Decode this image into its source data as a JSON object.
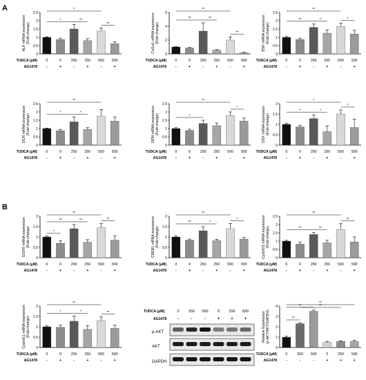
{
  "figure": {
    "panel_letters": [
      "A",
      "B"
    ],
    "tudca_label": "TUDCA (μM)",
    "ag_label": "AG1478",
    "x_tudca": [
      "0",
      "0",
      "250",
      "250",
      "500",
      "500"
    ],
    "x_ag": [
      "-",
      "+",
      "-",
      "+",
      "-",
      "+"
    ],
    "bar_colors": [
      "#101010",
      "#8c8c8c",
      "#5a5a5a",
      "#a6a6a6",
      "#d9d9d9",
      "#9a9a9a"
    ],
    "sig": {
      "star": "*",
      "double": "**"
    }
  },
  "chart_data": [
    {
      "id": "alp",
      "type": "bar",
      "ylabel": "ALP mRNA expression",
      "ylabel2": "(Fold change)",
      "ylim": [
        0,
        2.5
      ],
      "yticks": [
        0,
        0.5,
        1.0,
        1.5,
        2.0,
        2.5
      ],
      "values": [
        1.0,
        0.87,
        1.5,
        0.8,
        1.38,
        0.62
      ],
      "errors": [
        0.03,
        0.08,
        0.28,
        0.12,
        0.18,
        0.12
      ],
      "brackets": [
        {
          "a": 0,
          "b": 4,
          "t": "*"
        },
        {
          "a": 0,
          "b": 2,
          "t": "*"
        },
        {
          "a": 2,
          "b": 3,
          "t": "**"
        },
        {
          "a": 4,
          "b": 5,
          "t": "**"
        }
      ]
    },
    {
      "id": "col1a1",
      "type": "bar",
      "ylabel": "Col1a1 mRNA expression",
      "ylabel2": "(Fold change)",
      "ylim": [
        0,
        6
      ],
      "yticks": [
        0,
        2,
        4,
        6
      ],
      "values": [
        1.0,
        0.85,
        3.3,
        0.55,
        2.0,
        0.15
      ],
      "errors": [
        0.05,
        0.08,
        1.2,
        0.08,
        0.45,
        0.1
      ],
      "brackets": [
        {
          "a": 0,
          "b": 4,
          "t": "**"
        },
        {
          "a": 0,
          "b": 2,
          "t": "**"
        },
        {
          "a": 2,
          "b": 3,
          "t": "**"
        },
        {
          "a": 4,
          "b": 5,
          "t": "**"
        }
      ]
    },
    {
      "id": "bsp",
      "type": "bar",
      "ylabel": "BSP mRNA expression",
      "ylabel2": "(Fold change)",
      "ylim": [
        0,
        2.5
      ],
      "yticks": [
        0,
        0.5,
        1.0,
        1.5,
        2.0,
        2.5
      ],
      "values": [
        1.0,
        0.87,
        1.6,
        1.25,
        1.65,
        1.2
      ],
      "errors": [
        0.05,
        0.08,
        0.2,
        0.2,
        0.2,
        0.22
      ],
      "brackets": [
        {
          "a": 0,
          "b": 4,
          "t": "**"
        },
        {
          "a": 0,
          "b": 2,
          "t": "**"
        },
        {
          "a": 2,
          "b": 3,
          "t": "*"
        },
        {
          "a": 4,
          "b": 5,
          "t": "*"
        }
      ]
    },
    {
      "id": "ocn",
      "type": "bar",
      "ylabel": "OCN mRNA expression",
      "ylabel2": "(Fold change)",
      "ylim": [
        0,
        2.5
      ],
      "yticks": [
        0,
        0.5,
        1.0,
        1.5,
        2.0,
        2.5
      ],
      "values": [
        1.0,
        0.87,
        1.4,
        0.95,
        1.75,
        1.45
      ],
      "errors": [
        0.03,
        0.08,
        0.3,
        0.1,
        0.4,
        0.25
      ],
      "brackets": [
        {
          "a": 0,
          "b": 4,
          "t": "**"
        },
        {
          "a": 0,
          "b": 2,
          "t": "*"
        },
        {
          "a": 2,
          "b": 3,
          "t": "*"
        }
      ]
    },
    {
      "id": "opn",
      "type": "bar",
      "ylabel": "OPN mRNA expression",
      "ylabel2": "(Fold change)",
      "ylim": [
        0,
        2.5
      ],
      "yticks": [
        0,
        0.5,
        1.0,
        1.5,
        2.0,
        2.5
      ],
      "values": [
        1.0,
        0.88,
        1.3,
        1.18,
        1.78,
        1.45
      ],
      "errors": [
        0.05,
        0.08,
        0.2,
        0.15,
        0.22,
        0.18
      ],
      "brackets": [
        {
          "a": 0,
          "b": 4,
          "t": "**"
        },
        {
          "a": 0,
          "b": 2,
          "t": "*"
        },
        {
          "a": 4,
          "b": 5,
          "t": "*"
        }
      ]
    },
    {
      "id": "osx",
      "type": "bar",
      "ylabel": "OSX mRNA expression",
      "ylabel2": "(Fold change)",
      "ylim": [
        0,
        2.0
      ],
      "yticks": [
        0,
        0.5,
        1.0,
        1.5,
        2.0
      ],
      "values": [
        1.0,
        0.88,
        1.28,
        0.65,
        1.5,
        0.85
      ],
      "errors": [
        0.05,
        0.08,
        0.18,
        0.28,
        0.2,
        0.4
      ],
      "brackets": [
        {
          "a": 0,
          "b": 4,
          "t": "*"
        },
        {
          "a": 2,
          "b": 3,
          "t": "*"
        },
        {
          "a": 0,
          "b": 2,
          "t": "*"
        },
        {
          "a": 4,
          "b": 5,
          "t": "*"
        }
      ]
    },
    {
      "id": "egfr",
      "type": "bar",
      "ylabel": "EGFR mRNA expression",
      "ylabel2": "(Fold change)",
      "ylim": [
        0,
        2.0
      ],
      "yticks": [
        0,
        0.5,
        1.0,
        1.5,
        2.0
      ],
      "values": [
        1.0,
        0.7,
        1.4,
        0.75,
        1.45,
        0.85
      ],
      "errors": [
        0.05,
        0.12,
        0.2,
        0.12,
        0.2,
        0.2
      ],
      "brackets": [
        {
          "a": 0,
          "b": 4,
          "t": "**"
        },
        {
          "a": 0,
          "b": 2,
          "t": "**"
        },
        {
          "a": 2,
          "b": 3,
          "t": "**"
        },
        {
          "a": 4,
          "b": 5,
          "t": "**"
        },
        {
          "a": 0,
          "b": 1,
          "t": "*"
        }
      ]
    },
    {
      "id": "creb1",
      "type": "bar",
      "ylabel": "CREB1 mRNA expression",
      "ylabel2": "(Fold change)",
      "ylim": [
        0,
        2.0
      ],
      "yticks": [
        0,
        0.5,
        1.0,
        1.5,
        2.0
      ],
      "values": [
        1.0,
        0.85,
        1.3,
        0.83,
        1.4,
        0.9
      ],
      "errors": [
        0.05,
        0.05,
        0.2,
        0.06,
        0.25,
        0.08
      ],
      "brackets": [
        {
          "a": 0,
          "b": 4,
          "t": "**"
        },
        {
          "a": 0,
          "b": 2,
          "t": "**"
        },
        {
          "a": 2,
          "b": 3,
          "t": "*"
        },
        {
          "a": 4,
          "b": 5,
          "t": "*"
        }
      ]
    },
    {
      "id": "cyclind1",
      "type": "bar",
      "ylabel": "CyclinD1 mRNA expression",
      "ylabel2": "(Fold change)",
      "ylim": [
        0,
        2.5
      ],
      "yticks": [
        0,
        0.5,
        1.0,
        1.5,
        2.0,
        2.5
      ],
      "values": [
        1.0,
        0.82,
        1.4,
        0.9,
        1.7,
        0.95
      ],
      "errors": [
        0.05,
        0.12,
        0.12,
        0.15,
        0.35,
        0.3
      ],
      "brackets": [
        {
          "a": 0,
          "b": 4,
          "t": "**"
        },
        {
          "a": 0,
          "b": 2,
          "t": "**"
        },
        {
          "a": 2,
          "b": 3,
          "t": "**"
        },
        {
          "a": 4,
          "b": 5,
          "t": "**"
        }
      ]
    },
    {
      "id": "cycline1",
      "type": "bar",
      "ylabel": "CyclinE1 mRNA expression",
      "ylabel2": "(Fold change)",
      "ylim": [
        0,
        2.0
      ],
      "yticks": [
        0,
        0.5,
        1.0,
        1.5,
        2.0
      ],
      "values": [
        1.0,
        0.98,
        1.27,
        0.88,
        1.3,
        0.93
      ],
      "errors": [
        0.05,
        0.1,
        0.25,
        0.18,
        0.18,
        0.15
      ],
      "brackets": [
        {
          "a": 0,
          "b": 4,
          "t": "**"
        },
        {
          "a": 0,
          "b": 2,
          "t": "*"
        },
        {
          "a": 2,
          "b": 3,
          "t": "*"
        },
        {
          "a": 4,
          "b": 5,
          "t": "**"
        }
      ]
    },
    {
      "id": "relexp",
      "type": "bar",
      "ylabel": "Relative Expression",
      "ylabel2": "(p-AKT/AKT/GAPDH)",
      "ylim": [
        0,
        4
      ],
      "yticks": [
        0,
        1,
        2,
        3,
        4
      ],
      "values": [
        1.0,
        2.3,
        3.5,
        0.5,
        0.6,
        0.6
      ],
      "errors": [
        0.1,
        0.1,
        0.12,
        0.1,
        0.06,
        0.1
      ],
      "xtudca": [
        "0",
        "250",
        "500",
        "0",
        "250",
        "500"
      ],
      "xag": [
        "-",
        "-",
        "-",
        "+",
        "+",
        "+"
      ],
      "colors": [
        "#101010",
        "#6a6a6a",
        "#9a9a9a",
        "#d0d0d0",
        "#8c8c8c",
        "#a6a6a6"
      ],
      "brackets": [
        {
          "a": 0,
          "b": 5,
          "t": "**"
        },
        {
          "a": 1,
          "b": 4,
          "t": "**"
        },
        {
          "a": 0,
          "b": 2,
          "t": "**"
        },
        {
          "a": 0,
          "b": 1,
          "t": "**"
        }
      ]
    }
  ],
  "western": {
    "header_tudca": "TUDCA (μM)",
    "tudca": [
      "0",
      "250",
      "500",
      "0",
      "250",
      "500"
    ],
    "header_ag": "AG1478",
    "ag": [
      "-",
      "-",
      "-",
      "+",
      "+",
      "+"
    ],
    "bands": [
      {
        "label": "p-AKT",
        "intensity": [
          0.55,
          0.85,
          0.95,
          0.4,
          0.45,
          0.5
        ]
      },
      {
        "label": "AKT",
        "intensity": [
          0.9,
          0.9,
          0.9,
          0.9,
          0.9,
          0.9
        ]
      },
      {
        "label": "GAPDH",
        "intensity": [
          0.95,
          0.95,
          0.95,
          0.95,
          0.95,
          0.95
        ]
      }
    ]
  }
}
